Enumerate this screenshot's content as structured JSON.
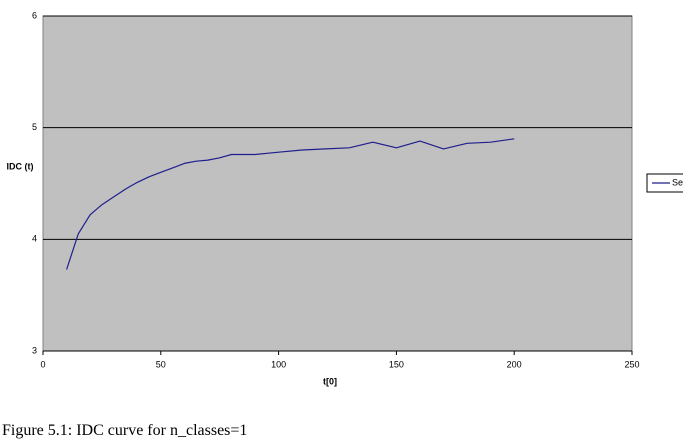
{
  "chart_data": {
    "type": "line",
    "x": [
      10,
      15,
      20,
      25,
      30,
      35,
      40,
      45,
      50,
      55,
      60,
      65,
      70,
      75,
      80,
      90,
      100,
      110,
      120,
      130,
      140,
      150,
      160,
      170,
      180,
      190,
      200
    ],
    "series": [
      {
        "name": "Se",
        "color": "#1f1f8c",
        "values": [
          3.73,
          4.05,
          4.22,
          4.31,
          4.38,
          4.45,
          4.51,
          4.56,
          4.6,
          4.64,
          4.68,
          4.7,
          4.71,
          4.73,
          4.76,
          4.76,
          4.78,
          4.8,
          4.81,
          4.82,
          4.87,
          4.82,
          4.88,
          4.81,
          4.86,
          4.87,
          4.9
        ]
      }
    ],
    "xlabel": "t[0]",
    "ylabel": "IDC (t)",
    "xlim": [
      0,
      250
    ],
    "xticks": [
      0,
      50,
      100,
      150,
      200,
      250
    ],
    "ylim": [
      3,
      6
    ],
    "yticks": [
      3,
      4,
      5,
      6
    ],
    "grid": true,
    "legend": "right"
  },
  "caption": "Figure 5.1: IDC curve for n_classes=1"
}
